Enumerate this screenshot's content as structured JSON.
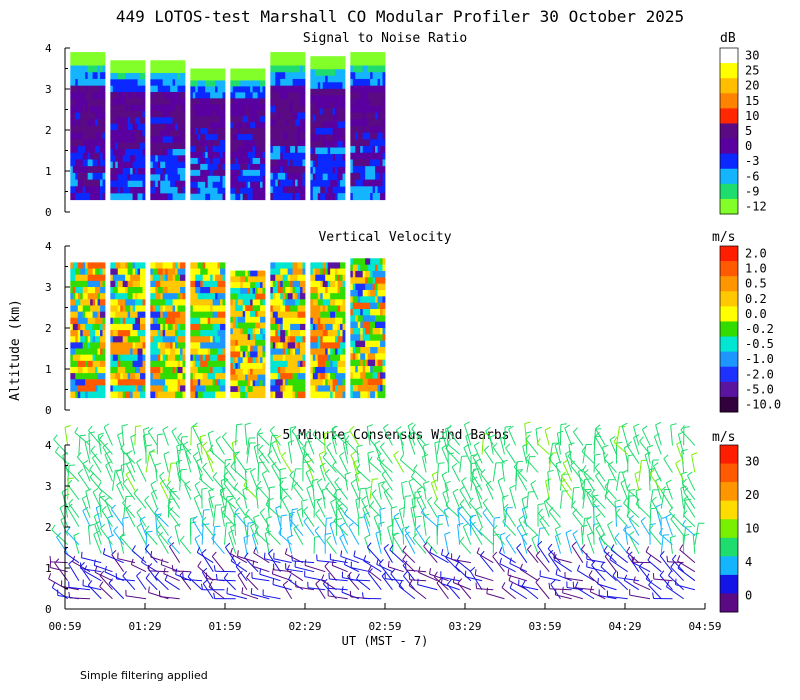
{
  "title": "449 LOTOS-test Marshall CO Modular Profiler 30 October 2025",
  "footer_note": "Simple filtering applied",
  "xlabel": "UT  (MST - 7)",
  "ylabel": "Altitude (km)",
  "x_tick_labels": [
    "00:59",
    "01:29",
    "01:59",
    "02:29",
    "02:59",
    "03:29",
    "03:59",
    "04:29",
    "04:59"
  ],
  "y_tick_labels": [
    "0",
    "1",
    "2",
    "3",
    "4"
  ],
  "chart_data": [
    {
      "type": "heatmap",
      "title": "Signal to Noise Ratio",
      "ylabel": "Altitude (km)",
      "ylim": [
        0,
        4
      ],
      "x_range": [
        "00:59",
        "04:59"
      ],
      "colorbar": {
        "unit": "dB",
        "labels": [
          "30",
          "25",
          "20",
          "15",
          "10",
          "5",
          "0",
          "-3",
          "-6",
          "-9",
          "-12"
        ],
        "colors": [
          "#ffffff",
          "#ffff00",
          "#ffbe00",
          "#ff8200",
          "#ff2800",
          "#5a0a82",
          "#5a00a0",
          "#0a28ff",
          "#14b4ff",
          "#1edc6e",
          "#82ff28"
        ]
      },
      "segments": [
        {
          "start": "01:01",
          "end": "01:14",
          "top_km": 3.9
        },
        {
          "start": "01:16",
          "end": "01:29",
          "top_km": 3.7
        },
        {
          "start": "01:31",
          "end": "01:44",
          "top_km": 3.7
        },
        {
          "start": "01:46",
          "end": "01:59",
          "top_km": 3.5
        },
        {
          "start": "02:01",
          "end": "02:14",
          "top_km": 3.5
        },
        {
          "start": "02:16",
          "end": "02:29",
          "top_km": 3.9
        },
        {
          "start": "02:31",
          "end": "02:44",
          "top_km": 3.8
        },
        {
          "start": "02:46",
          "end": "02:59",
          "top_km": 3.9
        }
      ]
    },
    {
      "type": "heatmap",
      "title": "Vertical Velocity",
      "ylabel": "Altitude (km)",
      "ylim": [
        0,
        4
      ],
      "x_range": [
        "00:59",
        "04:59"
      ],
      "colorbar": {
        "unit": "m/s",
        "labels": [
          "2.0",
          "1.0",
          "0.5",
          "0.2",
          "0.0",
          "-0.2",
          "-0.5",
          "-1.0",
          "-2.0",
          "-5.0",
          "-10.0"
        ],
        "colors": [
          "#ff1e00",
          "#ff5a00",
          "#ff9600",
          "#ffc800",
          "#ffff00",
          "#32dc00",
          "#00e6d2",
          "#1e96ff",
          "#1e32ff",
          "#5a14a0",
          "#32003c"
        ]
      },
      "segments": [
        {
          "start": "01:01",
          "end": "01:14",
          "top_km": 3.6
        },
        {
          "start": "01:16",
          "end": "01:29",
          "top_km": 3.6
        },
        {
          "start": "01:31",
          "end": "01:44",
          "top_km": 3.6
        },
        {
          "start": "01:46",
          "end": "01:59",
          "top_km": 3.6
        },
        {
          "start": "02:01",
          "end": "02:14",
          "top_km": 3.4
        },
        {
          "start": "02:16",
          "end": "02:29",
          "top_km": 3.6
        },
        {
          "start": "02:31",
          "end": "02:44",
          "top_km": 3.6
        },
        {
          "start": "02:46",
          "end": "02:59",
          "top_km": 3.7
        }
      ]
    },
    {
      "type": "scatter",
      "title": "5 Minute Consensus Wind Barbs",
      "ylabel": "Altitude (km)",
      "ylim": [
        0,
        4
      ],
      "x_range": [
        "00:59",
        "04:59"
      ],
      "colorbar": {
        "unit": "m/s",
        "labels": [
          "30",
          "20",
          "10",
          "4",
          "0"
        ],
        "colors": [
          "#ff1e00",
          "#ff5a00",
          "#ff9600",
          "#ffdc00",
          "#78f000",
          "#1edc6e",
          "#14b4ff",
          "#1414e6",
          "#5a0a82"
        ]
      }
    }
  ]
}
